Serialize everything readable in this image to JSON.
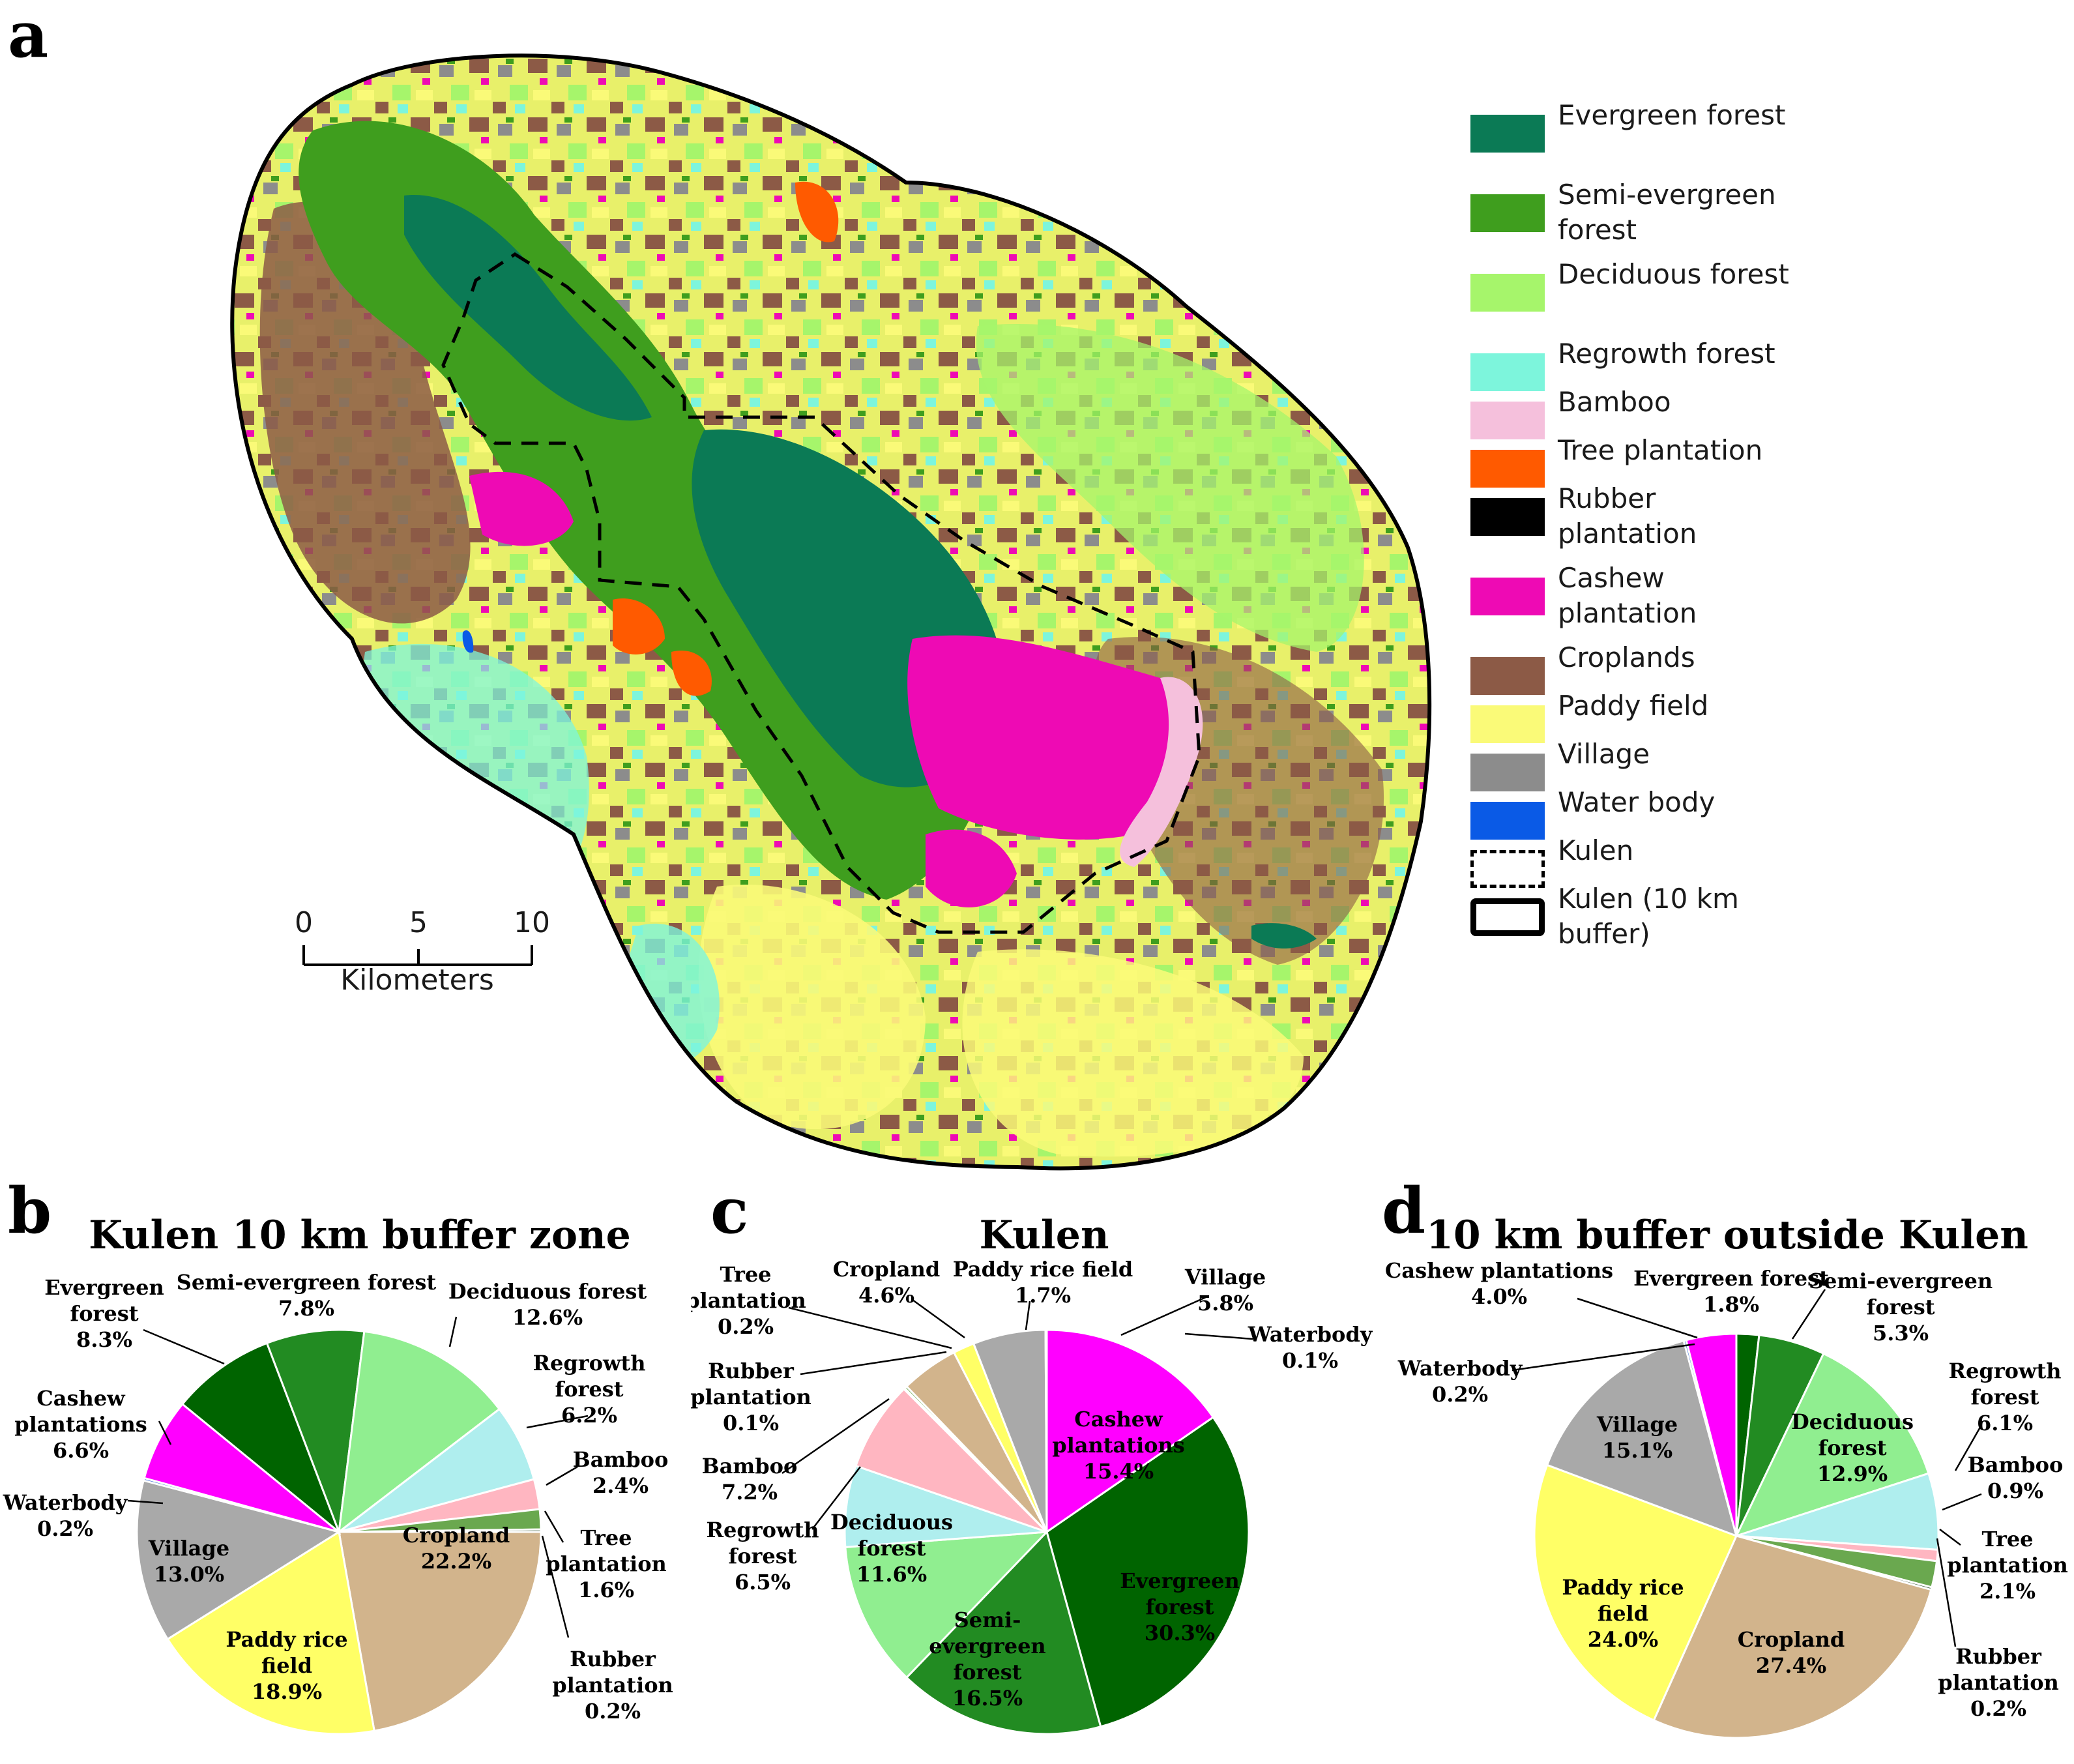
{
  "panels": {
    "a": "a",
    "b": "b",
    "c": "c",
    "d": "d"
  },
  "map": {
    "legend": [
      {
        "label": "Evergreen forest",
        "color": "#0b7a55",
        "style": "fill"
      },
      {
        "label": "Semi-evergreen forest",
        "color": "#3f9e1e",
        "style": "fill"
      },
      {
        "label": "Deciduous forest",
        "color": "#a6f56b",
        "style": "fill"
      },
      {
        "label": "Regrowth forest",
        "color": "#7df5dc",
        "style": "fill"
      },
      {
        "label": "Bamboo",
        "color": "#f5c0dc",
        "style": "fill"
      },
      {
        "label": "Tree plantation",
        "color": "#ff5a00",
        "style": "fill"
      },
      {
        "label": "Rubber plantation",
        "color": "#000000",
        "style": "fill"
      },
      {
        "label": "Cashew plantation",
        "color": "#ee0ab4",
        "style": "fill"
      },
      {
        "label": "Croplands",
        "color": "#8c5a46",
        "style": "fill"
      },
      {
        "label": "Paddy field",
        "color": "#fafa78",
        "style": "fill"
      },
      {
        "label": "Village",
        "color": "#8c8c8c",
        "style": "fill"
      },
      {
        "label": "Water body",
        "color": "#0a5ae6",
        "style": "fill"
      },
      {
        "label": "Kulen",
        "color": "#000000",
        "style": "dashed"
      },
      {
        "label": "Kulen (10 km buffer)",
        "color": "#000000",
        "style": "solid"
      }
    ],
    "scalebar": {
      "ticks": [
        "0",
        "5",
        "10"
      ],
      "unit": "Kilometers"
    }
  },
  "chart_data": [
    {
      "type": "pie",
      "title": "Kulen 10 km buffer zone",
      "start": "right",
      "slices": [
        {
          "label": "Cropland",
          "value": 22.2,
          "color": "#d2b48c",
          "pct": "22.2%"
        },
        {
          "label": "Paddy rice field",
          "value": 18.9,
          "color": "#ffff66",
          "pct": "18.9%"
        },
        {
          "label": "Village",
          "value": 13.0,
          "color": "#a9a9a9",
          "pct": "13.0%"
        },
        {
          "label": "Waterbody",
          "value": 0.2,
          "color": "#4a78d8",
          "pct": "0.2%"
        },
        {
          "label": "Cashew plantations",
          "value": 6.6,
          "color": "#ff00ff",
          "pct": "6.6%"
        },
        {
          "label": "Evergreen forest",
          "value": 8.3,
          "color": "#006400",
          "pct": "8.3%"
        },
        {
          "label": "Semi-evergreen forest",
          "value": 7.8,
          "color": "#228b22",
          "pct": "7.8%"
        },
        {
          "label": "Deciduous forest",
          "value": 12.6,
          "color": "#90ee90",
          "pct": "12.6%"
        },
        {
          "label": "Regrowth forest",
          "value": 6.2,
          "color": "#afeeee",
          "pct": "6.2%"
        },
        {
          "label": "Bamboo",
          "value": 2.4,
          "color": "#ffb6c1",
          "pct": "2.4%"
        },
        {
          "label": "Tree plantation",
          "value": 1.6,
          "color": "#6aa84f",
          "pct": "1.6%"
        },
        {
          "label": "Rubber plantation",
          "value": 0.2,
          "color": "#3d5c3a",
          "pct": "0.2%"
        }
      ]
    },
    {
      "type": "pie",
      "title": "Kulen",
      "start": "top",
      "slices": [
        {
          "label": "Cashew plantations",
          "value": 15.4,
          "color": "#ff00ff",
          "pct": "15.4%"
        },
        {
          "label": "Evergreen forest",
          "value": 30.3,
          "color": "#006400",
          "pct": "30.3%"
        },
        {
          "label": "Semi-evergreen forest",
          "value": 16.5,
          "color": "#228b22",
          "pct": "16.5%"
        },
        {
          "label": "Deciduous forest",
          "value": 11.6,
          "color": "#90ee90",
          "pct": "11.6%"
        },
        {
          "label": "Regrowth forest",
          "value": 6.5,
          "color": "#afeeee",
          "pct": "6.5%"
        },
        {
          "label": "Bamboo",
          "value": 7.2,
          "color": "#ffb6c1",
          "pct": "7.2%"
        },
        {
          "label": "Rubber plantation",
          "value": 0.1,
          "color": "#3d5c3a",
          "pct": "0.1%"
        },
        {
          "label": "Tree plantation",
          "value": 0.2,
          "color": "#6aa84f",
          "pct": "0.2%"
        },
        {
          "label": "Cropland",
          "value": 4.6,
          "color": "#d2b48c",
          "pct": "4.6%"
        },
        {
          "label": "Paddy rice field",
          "value": 1.7,
          "color": "#ffff66",
          "pct": "1.7%"
        },
        {
          "label": "Village",
          "value": 5.8,
          "color": "#a9a9a9",
          "pct": "5.8%"
        },
        {
          "label": "Waterbody",
          "value": 0.1,
          "color": "#4a78d8",
          "pct": "0.1%"
        }
      ]
    },
    {
      "type": "pie",
      "title": "10 km buffer outside Kulen",
      "start": "top",
      "slices": [
        {
          "label": "Evergreen forest",
          "value": 1.8,
          "color": "#006400",
          "pct": "1.8%"
        },
        {
          "label": "Semi-evergreen forest",
          "value": 5.3,
          "color": "#228b22",
          "pct": "5.3%"
        },
        {
          "label": "Deciduous forest",
          "value": 12.9,
          "color": "#90ee90",
          "pct": "12.9%"
        },
        {
          "label": "Regrowth forest",
          "value": 6.1,
          "color": "#afeeee",
          "pct": "6.1%"
        },
        {
          "label": "Bamboo",
          "value": 0.9,
          "color": "#ffb6c1",
          "pct": "0.9%"
        },
        {
          "label": "Tree plantation",
          "value": 2.1,
          "color": "#6aa84f",
          "pct": "2.1%"
        },
        {
          "label": "Rubber plantation",
          "value": 0.2,
          "color": "#3d5c3a",
          "pct": "0.2%"
        },
        {
          "label": "Cropland",
          "value": 27.4,
          "color": "#d2b48c",
          "pct": "27.4%"
        },
        {
          "label": "Paddy rice field",
          "value": 24.0,
          "color": "#ffff66",
          "pct": "24.0%"
        },
        {
          "label": "Village",
          "value": 15.1,
          "color": "#a9a9a9",
          "pct": "15.1%"
        },
        {
          "label": "Waterbody",
          "value": 0.2,
          "color": "#4a78d8",
          "pct": "0.2%"
        },
        {
          "label": "Cashew plantations",
          "value": 4.0,
          "color": "#ff00ff",
          "pct": "4.0%"
        }
      ]
    }
  ]
}
